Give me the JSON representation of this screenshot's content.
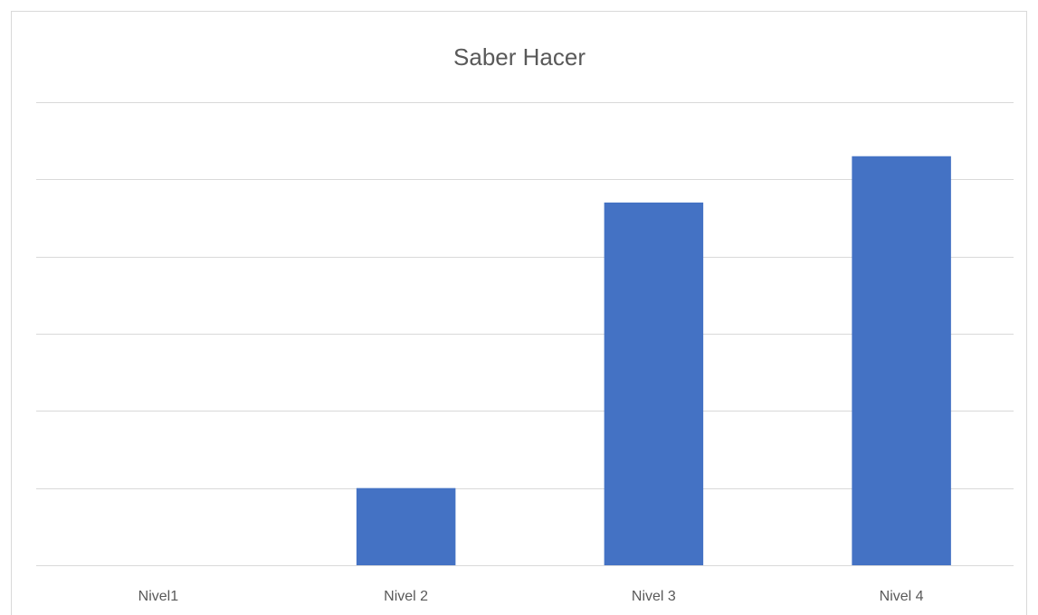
{
  "chart_data": {
    "type": "bar",
    "title": "Saber Hacer",
    "categories": [
      "Nivel1",
      "Nivel 2",
      "Nivel 3",
      "Nivel 4"
    ],
    "values": [
      0,
      1.0,
      4.7,
      5.3
    ],
    "color": "#4472c4",
    "ylim": [
      0,
      6
    ],
    "yticks": [
      0,
      1,
      2,
      3,
      4,
      5,
      6
    ],
    "grid": true
  }
}
